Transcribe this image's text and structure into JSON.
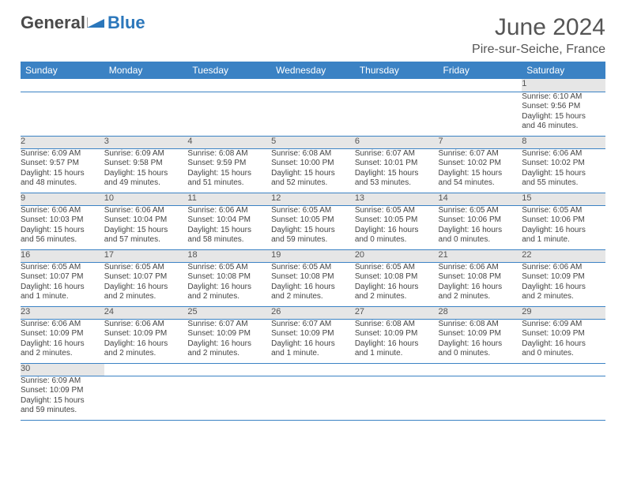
{
  "logo": {
    "text1": "General",
    "text2": "Blue"
  },
  "title": {
    "month": "June 2024",
    "location": "Pire-sur-Seiche, France"
  },
  "colors": {
    "header_bg": "#3b82c4",
    "header_text": "#ffffff",
    "daynum_bg": "#e6e6e6",
    "rule": "#3b82c4",
    "logo_blue": "#2b77bb",
    "text": "#444444"
  },
  "weekdays": [
    "Sunday",
    "Monday",
    "Tuesday",
    "Wednesday",
    "Thursday",
    "Friday",
    "Saturday"
  ],
  "weeks": [
    [
      null,
      null,
      null,
      null,
      null,
      null,
      {
        "n": "1",
        "sr": "Sunrise: 6:10 AM",
        "ss": "Sunset: 9:56 PM",
        "dl1": "Daylight: 15 hours",
        "dl2": "and 46 minutes."
      }
    ],
    [
      {
        "n": "2",
        "sr": "Sunrise: 6:09 AM",
        "ss": "Sunset: 9:57 PM",
        "dl1": "Daylight: 15 hours",
        "dl2": "and 48 minutes."
      },
      {
        "n": "3",
        "sr": "Sunrise: 6:09 AM",
        "ss": "Sunset: 9:58 PM",
        "dl1": "Daylight: 15 hours",
        "dl2": "and 49 minutes."
      },
      {
        "n": "4",
        "sr": "Sunrise: 6:08 AM",
        "ss": "Sunset: 9:59 PM",
        "dl1": "Daylight: 15 hours",
        "dl2": "and 51 minutes."
      },
      {
        "n": "5",
        "sr": "Sunrise: 6:08 AM",
        "ss": "Sunset: 10:00 PM",
        "dl1": "Daylight: 15 hours",
        "dl2": "and 52 minutes."
      },
      {
        "n": "6",
        "sr": "Sunrise: 6:07 AM",
        "ss": "Sunset: 10:01 PM",
        "dl1": "Daylight: 15 hours",
        "dl2": "and 53 minutes."
      },
      {
        "n": "7",
        "sr": "Sunrise: 6:07 AM",
        "ss": "Sunset: 10:02 PM",
        "dl1": "Daylight: 15 hours",
        "dl2": "and 54 minutes."
      },
      {
        "n": "8",
        "sr": "Sunrise: 6:06 AM",
        "ss": "Sunset: 10:02 PM",
        "dl1": "Daylight: 15 hours",
        "dl2": "and 55 minutes."
      }
    ],
    [
      {
        "n": "9",
        "sr": "Sunrise: 6:06 AM",
        "ss": "Sunset: 10:03 PM",
        "dl1": "Daylight: 15 hours",
        "dl2": "and 56 minutes."
      },
      {
        "n": "10",
        "sr": "Sunrise: 6:06 AM",
        "ss": "Sunset: 10:04 PM",
        "dl1": "Daylight: 15 hours",
        "dl2": "and 57 minutes."
      },
      {
        "n": "11",
        "sr": "Sunrise: 6:06 AM",
        "ss": "Sunset: 10:04 PM",
        "dl1": "Daylight: 15 hours",
        "dl2": "and 58 minutes."
      },
      {
        "n": "12",
        "sr": "Sunrise: 6:05 AM",
        "ss": "Sunset: 10:05 PM",
        "dl1": "Daylight: 15 hours",
        "dl2": "and 59 minutes."
      },
      {
        "n": "13",
        "sr": "Sunrise: 6:05 AM",
        "ss": "Sunset: 10:05 PM",
        "dl1": "Daylight: 16 hours",
        "dl2": "and 0 minutes."
      },
      {
        "n": "14",
        "sr": "Sunrise: 6:05 AM",
        "ss": "Sunset: 10:06 PM",
        "dl1": "Daylight: 16 hours",
        "dl2": "and 0 minutes."
      },
      {
        "n": "15",
        "sr": "Sunrise: 6:05 AM",
        "ss": "Sunset: 10:06 PM",
        "dl1": "Daylight: 16 hours",
        "dl2": "and 1 minute."
      }
    ],
    [
      {
        "n": "16",
        "sr": "Sunrise: 6:05 AM",
        "ss": "Sunset: 10:07 PM",
        "dl1": "Daylight: 16 hours",
        "dl2": "and 1 minute."
      },
      {
        "n": "17",
        "sr": "Sunrise: 6:05 AM",
        "ss": "Sunset: 10:07 PM",
        "dl1": "Daylight: 16 hours",
        "dl2": "and 2 minutes."
      },
      {
        "n": "18",
        "sr": "Sunrise: 6:05 AM",
        "ss": "Sunset: 10:08 PM",
        "dl1": "Daylight: 16 hours",
        "dl2": "and 2 minutes."
      },
      {
        "n": "19",
        "sr": "Sunrise: 6:05 AM",
        "ss": "Sunset: 10:08 PM",
        "dl1": "Daylight: 16 hours",
        "dl2": "and 2 minutes."
      },
      {
        "n": "20",
        "sr": "Sunrise: 6:05 AM",
        "ss": "Sunset: 10:08 PM",
        "dl1": "Daylight: 16 hours",
        "dl2": "and 2 minutes."
      },
      {
        "n": "21",
        "sr": "Sunrise: 6:06 AM",
        "ss": "Sunset: 10:08 PM",
        "dl1": "Daylight: 16 hours",
        "dl2": "and 2 minutes."
      },
      {
        "n": "22",
        "sr": "Sunrise: 6:06 AM",
        "ss": "Sunset: 10:09 PM",
        "dl1": "Daylight: 16 hours",
        "dl2": "and 2 minutes."
      }
    ],
    [
      {
        "n": "23",
        "sr": "Sunrise: 6:06 AM",
        "ss": "Sunset: 10:09 PM",
        "dl1": "Daylight: 16 hours",
        "dl2": "and 2 minutes."
      },
      {
        "n": "24",
        "sr": "Sunrise: 6:06 AM",
        "ss": "Sunset: 10:09 PM",
        "dl1": "Daylight: 16 hours",
        "dl2": "and 2 minutes."
      },
      {
        "n": "25",
        "sr": "Sunrise: 6:07 AM",
        "ss": "Sunset: 10:09 PM",
        "dl1": "Daylight: 16 hours",
        "dl2": "and 2 minutes."
      },
      {
        "n": "26",
        "sr": "Sunrise: 6:07 AM",
        "ss": "Sunset: 10:09 PM",
        "dl1": "Daylight: 16 hours",
        "dl2": "and 1 minute."
      },
      {
        "n": "27",
        "sr": "Sunrise: 6:08 AM",
        "ss": "Sunset: 10:09 PM",
        "dl1": "Daylight: 16 hours",
        "dl2": "and 1 minute."
      },
      {
        "n": "28",
        "sr": "Sunrise: 6:08 AM",
        "ss": "Sunset: 10:09 PM",
        "dl1": "Daylight: 16 hours",
        "dl2": "and 0 minutes."
      },
      {
        "n": "29",
        "sr": "Sunrise: 6:09 AM",
        "ss": "Sunset: 10:09 PM",
        "dl1": "Daylight: 16 hours",
        "dl2": "and 0 minutes."
      }
    ],
    [
      {
        "n": "30",
        "sr": "Sunrise: 6:09 AM",
        "ss": "Sunset: 10:09 PM",
        "dl1": "Daylight: 15 hours",
        "dl2": "and 59 minutes."
      },
      null,
      null,
      null,
      null,
      null,
      null
    ]
  ]
}
